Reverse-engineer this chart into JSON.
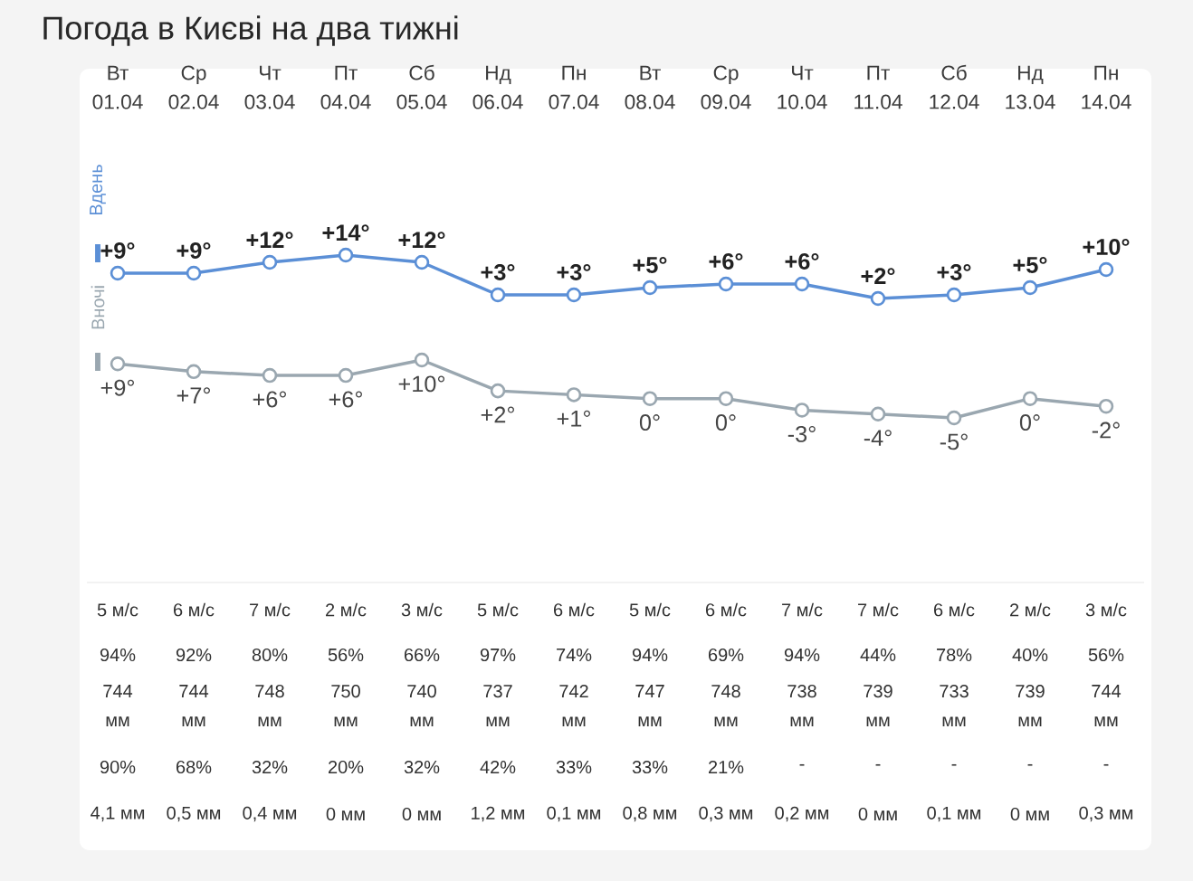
{
  "chart_data": [
    {
      "type": "line",
      "title": "Погода в Києві на два тижні",
      "categories": [
        "Вт 01.04",
        "Ср 02.04",
        "Чт 03.04",
        "Пт 04.04",
        "Сб 05.04",
        "Нд 06.04",
        "Пн 07.04",
        "Вт 08.04",
        "Ср 09.04",
        "Чт 10.04",
        "Пт 11.04",
        "Сб 12.04",
        "Нд 13.04",
        "Пн 14.04"
      ],
      "series": [
        {
          "name": "Вдень",
          "color": "#5b8fd6",
          "values": [
            9,
            9,
            12,
            14,
            12,
            3,
            3,
            5,
            6,
            6,
            2,
            3,
            5,
            10
          ],
          "value_labels": [
            "+9°",
            "+9°",
            "+12°",
            "+14°",
            "+12°",
            "+3°",
            "+3°",
            "+5°",
            "+6°",
            "+6°",
            "+2°",
            "+3°",
            "+5°",
            "+10°"
          ]
        }
      ],
      "tick_labels": "x",
      "legend": "left",
      "marker": "circle",
      "line_style": "solid",
      "annotations": [
        "5 м/с",
        "6 м/с",
        "7 м/с",
        "2 м/с",
        "3 м/с",
        "5 м/с",
        "6 м/с",
        "5 м/с",
        "6 м/с",
        "7 м/с",
        "7 м/с",
        "6 м/с",
        "2 м/с",
        "3 м/с",
        "94%",
        "92%",
        "80%",
        "56%",
        "66%",
        "97%",
        "74%",
        "94%",
        "69%",
        "94%",
        "44%",
        "78%",
        "40%",
        "56%",
        "744 мм",
        "744 мм",
        "748 мм",
        "750 мм",
        "740 мм",
        "737 мм",
        "742 мм",
        "747 мм",
        "748 мм",
        "738 мм",
        "739 мм",
        "733 мм",
        "739 мм",
        "744 мм",
        "90%",
        "68%",
        "32%",
        "20%",
        "32%",
        "42%",
        "33%",
        "33%",
        "21%",
        "-",
        "-",
        "-",
        "-",
        "-",
        "4,1 мм",
        "0,5 мм",
        "0,4 мм",
        "0 мм",
        "0 мм",
        "1,2 мм",
        "0,1 мм",
        "0,8 мм",
        "0,3 мм",
        "0,2 мм",
        "0 мм",
        "0,1 мм",
        "0 мм",
        "0,3 мм"
      ]
    },
    {
      "type": "line",
      "categories": [
        null,
        null,
        null,
        null,
        null,
        null,
        null,
        null,
        null,
        null,
        null,
        null,
        null,
        null
      ],
      "series": [
        {
          "name": "Вночі",
          "color": "#9aa7b0",
          "values": [
            9,
            7,
            6,
            6,
            10,
            2,
            1,
            0,
            0,
            -3,
            -4,
            -5,
            0,
            -2
          ],
          "value_labels": [
            "+9°",
            "+7°",
            "+6°",
            "+6°",
            "+10°",
            "+2°",
            "+1°",
            "0°",
            "0°",
            "-3°",
            "-4°",
            "-5°",
            "0°",
            "-2°"
          ]
        }
      ],
      "tick_labels": false,
      "legend": "left",
      "marker": "circle",
      "line_style": "solid"
    }
  ]
}
